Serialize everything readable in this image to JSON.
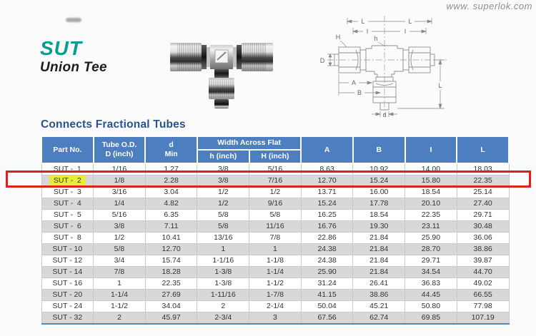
{
  "page": {
    "website": "www. superlok.com",
    "product_code": "SUT",
    "product_name": "Union Tee",
    "section_title": "Connects Fractional Tubes"
  },
  "colors": {
    "brand_teal": "#0c9c8e",
    "table_header_blue": "#4d7fc0",
    "section_title_blue": "#2b5290",
    "row_alt_gray": "#d8d8d8",
    "annotation_red": "#d8221c",
    "marker_yellow": "#e7ed3a"
  },
  "diagram": {
    "labels": {
      "L_top_left": "L",
      "L_top_right": "L",
      "H": "H",
      "I_left": "I",
      "h": "h",
      "I_right": "I",
      "D": "D",
      "A": "A",
      "B": "B",
      "L_right": "L",
      "d": "d"
    }
  },
  "table": {
    "headers": {
      "part_no": "Part No.",
      "tube_od_1": "Tube O.D.",
      "tube_od_2": "D (inch)",
      "d_1": "d",
      "d_2": "Min",
      "width_across_flat": "Width Across Flat",
      "h_inch": "h (inch)",
      "H_inch": "H (inch)",
      "A": "A",
      "B": "B",
      "I": "I",
      "L": "L"
    },
    "rows": [
      {
        "part": "SUT -  1",
        "od": "1/16",
        "dmin": "1.27",
        "h": "3/8",
        "H": "5/16",
        "A": "8.63",
        "B": "10.92",
        "I": "14.00",
        "L": "18.03"
      },
      {
        "part": "SUT -  2",
        "od": "1/8",
        "dmin": "2.28",
        "h": "3/8",
        "H": "7/16",
        "A": "12.70",
        "B": "15.24",
        "I": "15.80",
        "L": "22.35",
        "highlight": true
      },
      {
        "part": "SUT -  3",
        "od": "3/16",
        "dmin": "3.04",
        "h": "1/2",
        "H": "1/2",
        "A": "13.71",
        "B": "16.00",
        "I": "18.54",
        "L": "25.14"
      },
      {
        "part": "SUT -  4",
        "od": "1/4",
        "dmin": "4.82",
        "h": "1/2",
        "H": "9/16",
        "A": "15.24",
        "B": "17.78",
        "I": "20.10",
        "L": "27.40"
      },
      {
        "part": "SUT -  5",
        "od": "5/16",
        "dmin": "6.35",
        "h": "5/8",
        "H": "5/8",
        "A": "16.25",
        "B": "18.54",
        "I": "22.35",
        "L": "29.71"
      },
      {
        "part": "SUT -  6",
        "od": "3/8",
        "dmin": "7.11",
        "h": "5/8",
        "H": "11/16",
        "A": "16.76",
        "B": "19.30",
        "I": "23.11",
        "L": "30.48"
      },
      {
        "part": "SUT -  8",
        "od": "1/2",
        "dmin": "10.41",
        "h": "13/16",
        "H": "7/8",
        "A": "22.86",
        "B": "21.84",
        "I": "25.90",
        "L": "36.06"
      },
      {
        "part": "SUT - 10",
        "od": "5/8",
        "dmin": "12.70",
        "h": "1",
        "H": "1",
        "A": "24.38",
        "B": "21.84",
        "I": "28.70",
        "L": "38.86"
      },
      {
        "part": "SUT - 12",
        "od": "3/4",
        "dmin": "15.74",
        "h": "1-1/16",
        "H": "1-1/8",
        "A": "24.38",
        "B": "21.84",
        "I": "29.71",
        "L": "39.87"
      },
      {
        "part": "SUT - 14",
        "od": "7/8",
        "dmin": "18.28",
        "h": "1-3/8",
        "H": "1-1/4",
        "A": "25.90",
        "B": "21.84",
        "I": "34.54",
        "L": "44.70"
      },
      {
        "part": "SUT - 16",
        "od": "1",
        "dmin": "22.35",
        "h": "1-3/8",
        "H": "1-1/2",
        "A": "31.24",
        "B": "26.41",
        "I": "36.83",
        "L": "49.02"
      },
      {
        "part": "SUT - 20",
        "od": "1-1/4",
        "dmin": "27.69",
        "h": "1-11/16",
        "H": "1-7/8",
        "A": "41.15",
        "B": "38.86",
        "I": "44.45",
        "L": "66.55"
      },
      {
        "part": "SUT - 24",
        "od": "1-1/2",
        "dmin": "34.04",
        "h": "2",
        "H": "2-1/4",
        "A": "50.04",
        "B": "45.21",
        "I": "50.80",
        "L": "77.98"
      },
      {
        "part": "SUT - 32",
        "od": "2",
        "dmin": "45.97",
        "h": "2-3/4",
        "H": "3",
        "A": "67.56",
        "B": "62.74",
        "I": "69.85",
        "L": "107.19"
      }
    ]
  }
}
